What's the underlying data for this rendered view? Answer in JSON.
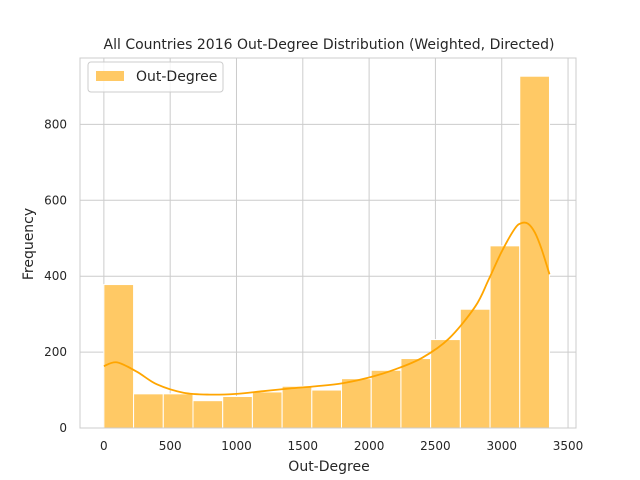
{
  "chart_data": {
    "type": "bar",
    "title": "All Countries 2016 Out-Degree Distribution (Weighted, Directed)",
    "xlabel": "Out-Degree",
    "ylabel": "Frequency",
    "xlim": [
      -180,
      3560
    ],
    "ylim": [
      0,
      975
    ],
    "xticks": [
      0,
      500,
      1000,
      1500,
      2000,
      2500,
      3000,
      3500
    ],
    "yticks": [
      0,
      200,
      400,
      600,
      800
    ],
    "grid": true,
    "legend": {
      "position": "top-left",
      "entries": [
        {
          "label": "Out-Degree",
          "color": "#FFC965"
        }
      ]
    },
    "histogram": {
      "bin_edges": [
        0,
        224,
        448,
        672,
        896,
        1120,
        1344,
        1568,
        1792,
        2016,
        2240,
        2464,
        2688,
        2912,
        3136,
        3360
      ],
      "counts": [
        378,
        90,
        90,
        72,
        83,
        95,
        110,
        100,
        130,
        152,
        183,
        233,
        313,
        480,
        927
      ]
    },
    "kde": {
      "x": [
        0,
        100,
        250,
        400,
        600,
        800,
        1000,
        1200,
        1400,
        1600,
        1800,
        2000,
        2200,
        2400,
        2600,
        2800,
        2900,
        3000,
        3100,
        3150,
        3200,
        3250,
        3300,
        3360
      ],
      "y": [
        163,
        173,
        148,
        115,
        93,
        88,
        90,
        97,
        104,
        110,
        118,
        133,
        155,
        185,
        235,
        320,
        390,
        465,
        526,
        540,
        538,
        515,
        472,
        405
      ]
    },
    "colors": {
      "bar_fill": "#FFC965",
      "bar_edge": "#FFFFFF",
      "kde_line": "#FFA500",
      "grid": "#CCCCCC",
      "axis_text": "#262626"
    }
  }
}
